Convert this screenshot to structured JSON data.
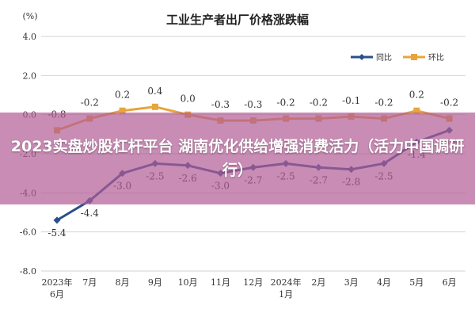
{
  "banner": {
    "text": "2023实盘炒股杠杆平台 湖南优化供给增强消费活力（活力中国调研行）"
  },
  "colors": {
    "yoy": "#2b4f8c",
    "mom": "#e8a53a",
    "grid": "#d3d3d3",
    "plot_bg": "#ffffff"
  },
  "chart_data": {
    "type": "line",
    "title": "工业生产者出厂价格涨跌幅",
    "unit": "(%)",
    "categories": [
      [
        "2023年",
        "6月"
      ],
      [
        "7月"
      ],
      [
        "8月"
      ],
      [
        "9月"
      ],
      [
        "10月"
      ],
      [
        "11月"
      ],
      [
        "12月"
      ],
      [
        "2024年",
        "1月"
      ],
      [
        "2月"
      ],
      [
        "3月"
      ],
      [
        "4月"
      ],
      [
        "5月"
      ],
      [
        "6月"
      ]
    ],
    "ylim": [
      -8.0,
      4.0
    ],
    "yticks": [
      "4.0",
      "2.0",
      "0.0",
      "-2.0",
      "-4.0",
      "-6.0",
      "-8.0"
    ],
    "ytick_values": [
      4,
      2,
      0,
      -2,
      -4,
      -6,
      -8
    ],
    "grid": true,
    "legend_position": "top-right",
    "series": [
      {
        "name": "同比",
        "color": "#2b4f8c",
        "values": [
          -5.4,
          -4.4,
          -3.0,
          -2.5,
          -2.6,
          -3.0,
          -2.7,
          -2.5,
          -2.7,
          -2.8,
          -2.5,
          -1.4,
          -0.8
        ],
        "labels": [
          "-5.4",
          "-4.4",
          "-3.0",
          "-2.5",
          "-2.6",
          "-3.0",
          "-2.7",
          "-2.5",
          "-2.7",
          "-2.8",
          "-2.5",
          "-1.4",
          "-0.8"
        ]
      },
      {
        "name": "环比",
        "color": "#e8a53a",
        "values": [
          -0.8,
          -0.2,
          0.2,
          0.4,
          0.0,
          -0.3,
          -0.3,
          -0.2,
          -0.2,
          -0.1,
          -0.2,
          0.2,
          -0.2
        ],
        "labels": [
          "-0.8",
          "-0.2",
          "0.2",
          "0.4",
          "0.0",
          "-0.3",
          "-0.3",
          "-0.2",
          "-0.2",
          "-0.1",
          "-0.2",
          "0.2",
          "-0.2"
        ]
      }
    ]
  }
}
